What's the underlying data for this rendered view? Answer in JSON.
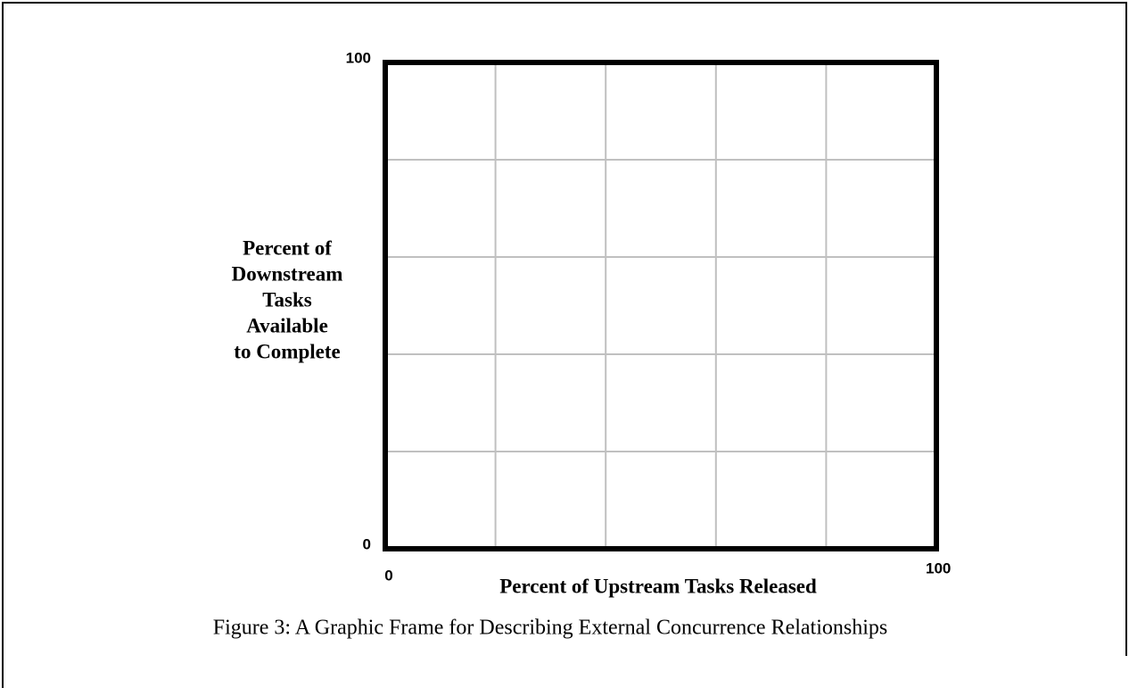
{
  "chart_data": {
    "type": "line",
    "caption": "Figure 3:  A Graphic Frame for Describing External Concurrence Relationships",
    "xlabel": "Percent of Upstream Tasks Released",
    "ylabel": [
      "Percent of",
      "Downstream",
      "Tasks",
      "Available",
      "to  Complete"
    ],
    "series": [],
    "xlim": [
      0,
      100
    ],
    "ylim": [
      0,
      100
    ],
    "xticks": [
      0,
      100
    ],
    "yticks": [
      0,
      100
    ],
    "xgrid": [
      20,
      40,
      60,
      80
    ],
    "ygrid": [
      20,
      40,
      60,
      80
    ],
    "grid": true,
    "grid_color": "#c0c0c0",
    "frame_color": "#000000"
  }
}
